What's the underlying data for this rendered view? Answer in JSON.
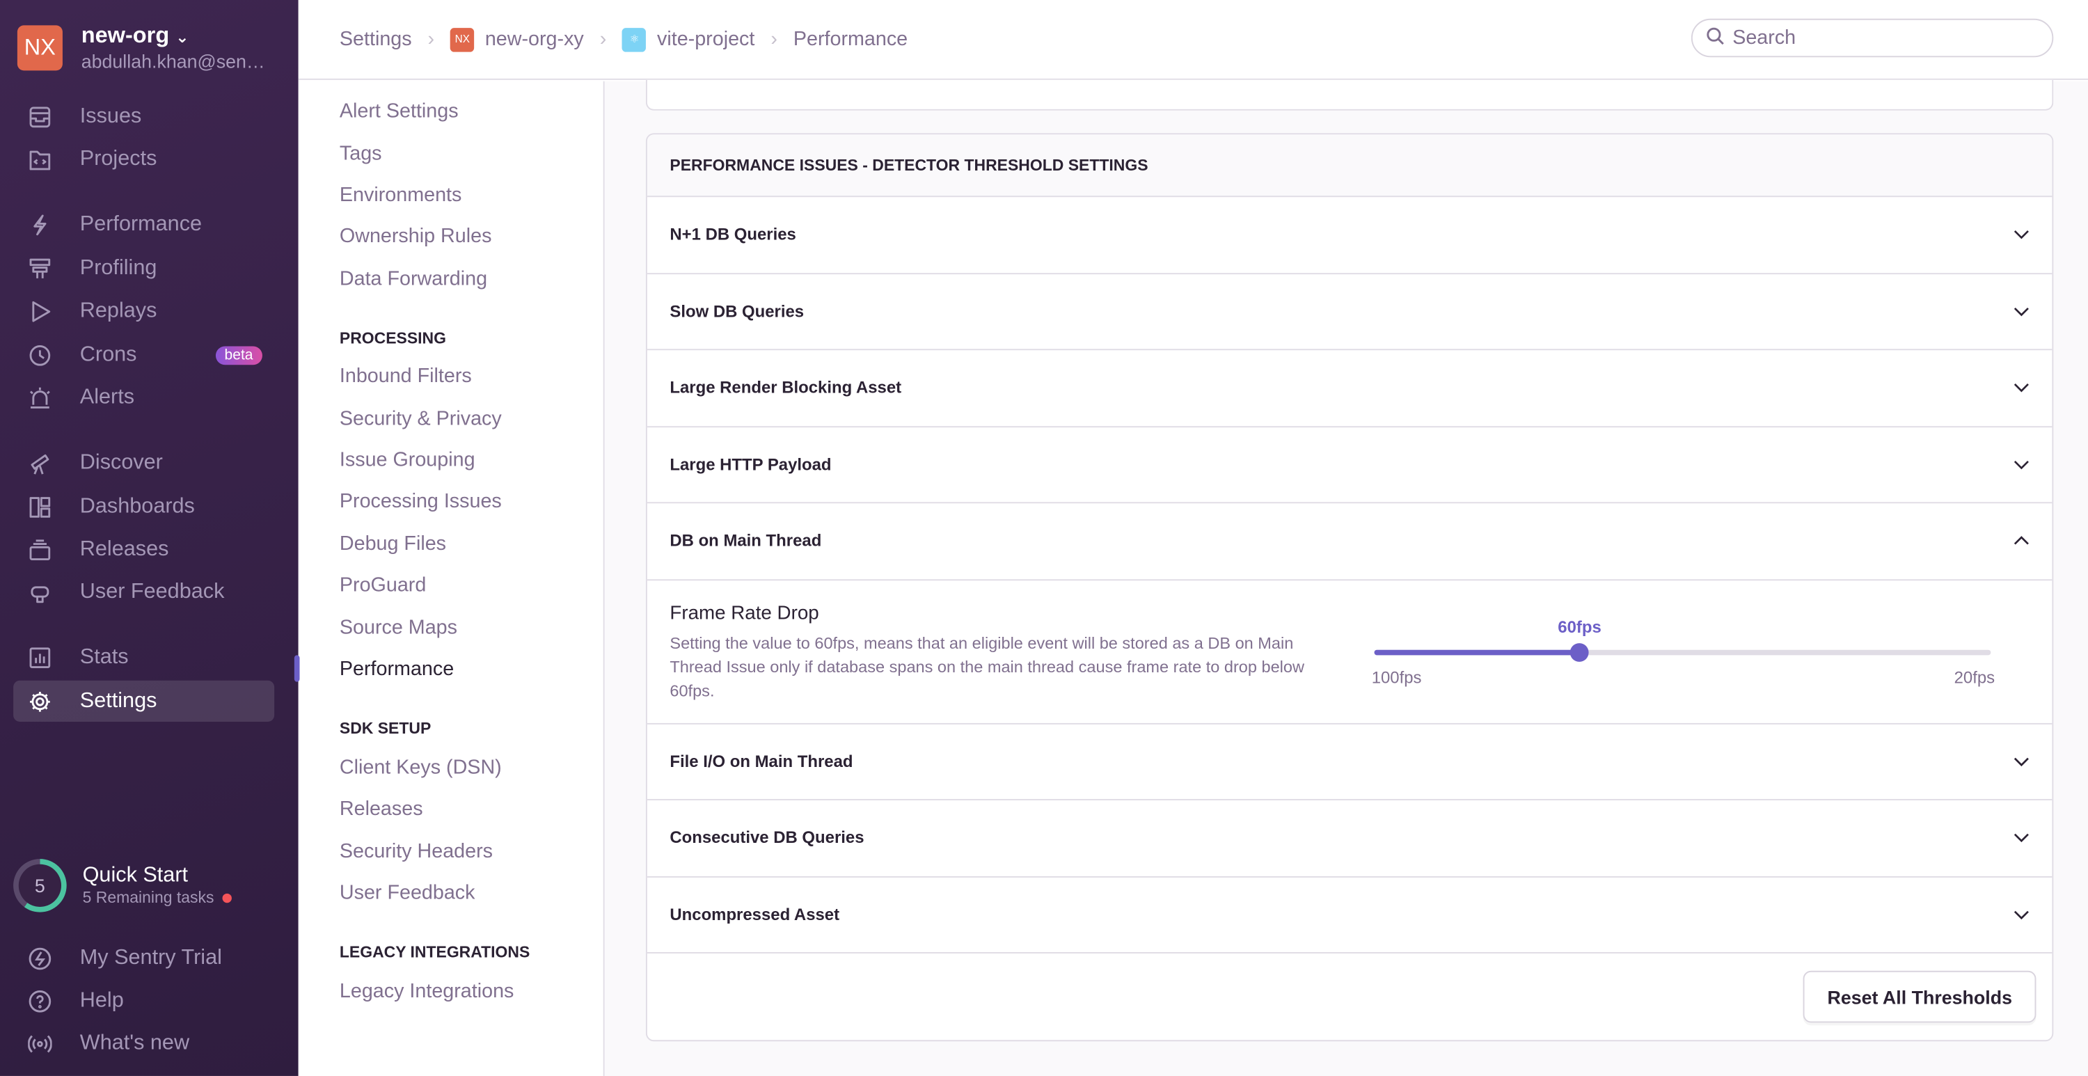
{
  "org": {
    "avatar": "NX",
    "name": "new-org",
    "email": "abdullah.khan@sen…"
  },
  "nav": [
    {
      "label": "Issues",
      "icon": "inbox-icon"
    },
    {
      "label": "Projects",
      "icon": "folder-code-icon"
    },
    {
      "label": "Performance",
      "icon": "lightning-icon"
    },
    {
      "label": "Profiling",
      "icon": "profiling-icon"
    },
    {
      "label": "Replays",
      "icon": "play-icon"
    },
    {
      "label": "Crons",
      "icon": "clock-icon",
      "badge": "beta"
    },
    {
      "label": "Alerts",
      "icon": "siren-icon"
    },
    {
      "label": "Discover",
      "icon": "telescope-icon"
    },
    {
      "label": "Dashboards",
      "icon": "dashboard-icon"
    },
    {
      "label": "Releases",
      "icon": "stack-icon"
    },
    {
      "label": "User Feedback",
      "icon": "megaphone-icon"
    },
    {
      "label": "Stats",
      "icon": "bar-chart-icon"
    },
    {
      "label": "Settings",
      "icon": "gear-icon",
      "active": true
    }
  ],
  "quick_start": {
    "count": "5",
    "title": "Quick Start",
    "subtitle": "5 Remaining tasks"
  },
  "bottom_nav": [
    {
      "label": "My Sentry Trial"
    },
    {
      "label": "Help"
    },
    {
      "label": "What's new"
    }
  ],
  "breadcrumb": [
    "Settings",
    "new-org-xy",
    "vite-project",
    "Performance"
  ],
  "org_crumb_avatar": "NX",
  "search": {
    "placeholder": "Search"
  },
  "subnav": {
    "items_top": [
      "Alert Settings",
      "Tags",
      "Environments",
      "Ownership Rules",
      "Data Forwarding"
    ],
    "processing_heading": "PROCESSING",
    "processing": [
      "Inbound Filters",
      "Security & Privacy",
      "Issue Grouping",
      "Processing Issues",
      "Debug Files",
      "ProGuard",
      "Source Maps",
      "Performance"
    ],
    "sdk_heading": "SDK SETUP",
    "sdk": [
      "Client Keys (DSN)",
      "Releases",
      "Security Headers",
      "User Feedback"
    ],
    "legacy_heading": "LEGACY INTEGRATIONS",
    "legacy": [
      "Legacy Integrations"
    ]
  },
  "panel": {
    "title": "Performance Issues - Detector Threshold Settings",
    "rows": [
      "N+1 DB Queries",
      "Slow DB Queries",
      "Large Render Blocking Asset",
      "Large HTTP Payload",
      "DB on Main Thread",
      "File I/O on Main Thread",
      "Consecutive DB Queries",
      "Uncompressed Asset"
    ],
    "expanded_row": "DB on Main Thread",
    "setting": {
      "title": "Frame Rate Drop",
      "description": "Setting the value to 60fps, means that an eligible event will be stored as a DB on Main Thread Issue only if database spans on the main thread cause frame rate to drop below 60fps.",
      "value_label": "60fps",
      "min_label": "100fps",
      "max_label": "20fps",
      "position_percent": 33.3
    },
    "reset_label": "Reset All Thresholds"
  },
  "colors": {
    "accent": "#6c5fc7",
    "sidebar": "#3e2650",
    "org_avatar": "#e1684b"
  }
}
